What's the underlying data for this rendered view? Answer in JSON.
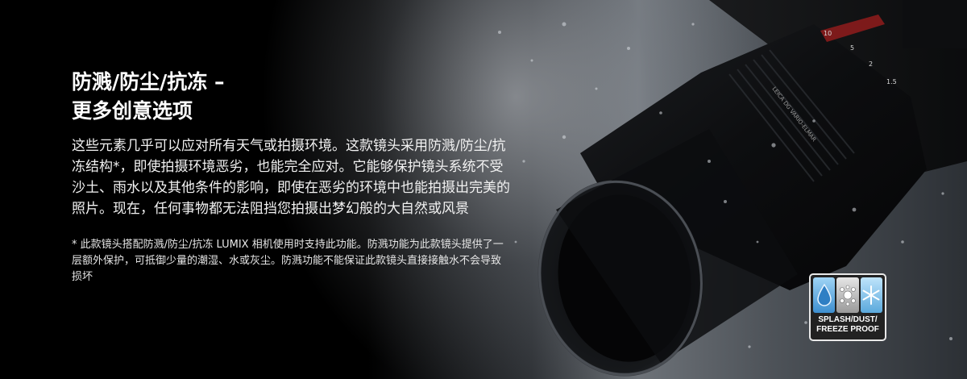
{
  "headline": {
    "line1": "防溅/防尘/抗冻 –",
    "line2": "更多创意选项"
  },
  "body": "这些元素几乎可以应对所有天气或拍摄环境。这款镜头采用防溅/防尘/抗冻结构*，即使拍摄环境恶劣，也能完全应对。它能够保护镜头系统不受沙土、雨水以及其他条件的影响，即使在恶劣的环境中也能拍摄出完美的照片。现在，任何事物都无法阻挡您拍摄出梦幻般的大自然或风景",
  "footnote": "* 此款镜头搭配防溅/防尘/抗冻 LUMIX 相机使用时支持此功能。防溅功能为此款镜头提供了一层额外保护，可抵御少量的潮湿、水或灰尘。防溅功能不能保证此款镜头直接接触水不会导致损坏",
  "product_image": {
    "lens_text": "LEICA DG VARIO-ELMAR",
    "focal_marks": [
      "10",
      "5",
      "2",
      "1.5"
    ]
  },
  "badge": {
    "line1": "SPLASH/DUST/",
    "line2": "FREEZE PROOF",
    "icons": [
      "water-drop-icon",
      "dust-icon",
      "snowflake-icon"
    ]
  }
}
